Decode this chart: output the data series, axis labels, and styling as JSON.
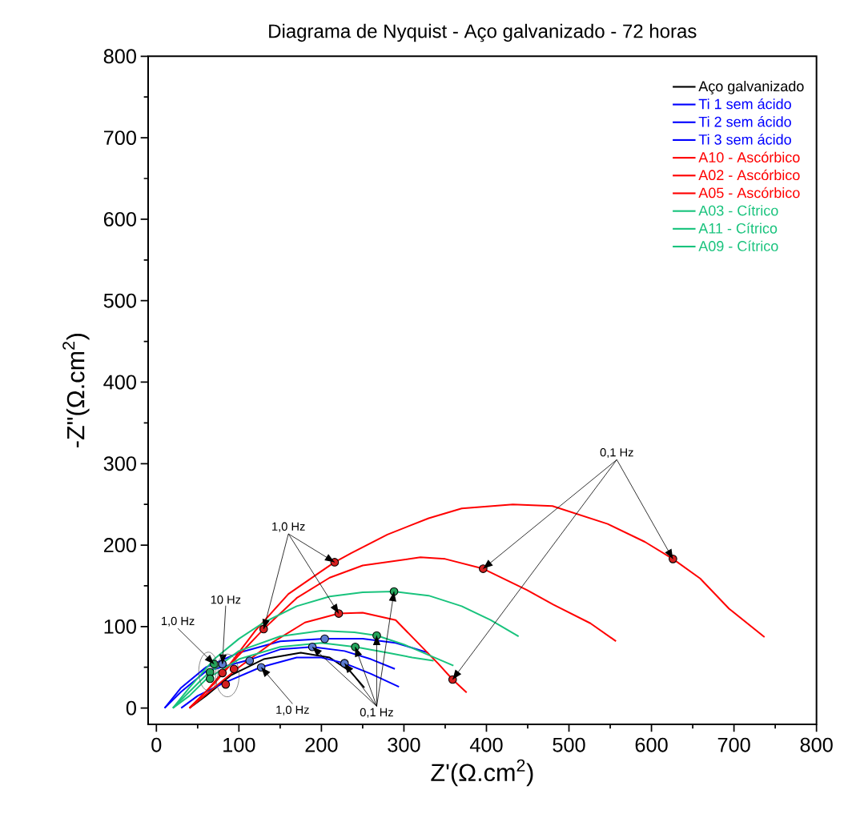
{
  "chart_data": {
    "type": "line",
    "title": "Diagrama de Nyquist - Aço galvanizado - 72 horas",
    "xlabel": "Z'(Ω.cm$^{2}$)",
    "ylabel": "-Z\"(Ω.cm$^{2}$)",
    "xlim": [
      -10,
      800
    ],
    "ylim": [
      -20,
      800
    ],
    "xticks": [
      0,
      100,
      200,
      300,
      400,
      500,
      600,
      700,
      800
    ],
    "yticks": [
      0,
      100,
      200,
      300,
      400,
      500,
      600,
      700,
      800
    ],
    "grid": false,
    "legend": "top right",
    "marker": "none",
    "line_style": "solid",
    "annotations": [
      {
        "text": "1,0 Hz",
        "x": 216,
        "y": 179
      },
      {
        "text": "10 Hz",
        "x": 80,
        "y": 54
      },
      {
        "text": "1,0 Hz",
        "x": 70,
        "y": 54
      },
      {
        "text": "1,0 Hz",
        "x": 127,
        "y": 50
      },
      {
        "text": "0,1 Hz",
        "x": 189,
        "y": 75
      },
      {
        "text": "0,1 Hz",
        "x": 626,
        "y": 183
      }
    ],
    "series": [
      {
        "name": "Aço galvanizado",
        "color": "#000000",
        "x": [
          40,
          60,
          90,
          130,
          175,
          210,
          235,
          252
        ],
        "values": [
          0,
          15,
          40,
          60,
          68,
          62,
          45,
          25
        ]
      },
      {
        "name": "Ti 1 sem ácido",
        "color": "#0000ff",
        "x": [
          10,
          30,
          60,
          100,
          150,
          204,
          250,
          290,
          329
        ],
        "values": [
          0,
          25,
          50,
          68,
          82,
          85,
          85,
          80,
          68
        ]
      },
      {
        "name": "Ti 2 sem ácido",
        "color": "#0000ff",
        "x": [
          10,
          30,
          60,
          112,
          150,
          189,
          228,
          260,
          289
        ],
        "values": [
          0,
          20,
          45,
          59,
          72,
          75,
          70,
          60,
          48
        ]
      },
      {
        "name": "Ti 3 sem ácido",
        "color": "#0000ff",
        "x": [
          30,
          50,
          80,
          126,
          170,
          200,
          228,
          260,
          294
        ],
        "values": [
          0,
          15,
          30,
          50,
          62,
          62,
          55,
          42,
          26
        ]
      },
      {
        "name": "A10 - Ascórbico",
        "color": "#ff0000",
        "x": [
          40,
          60,
          90,
          120,
          160,
          200,
          216,
          236,
          280,
          330,
          370,
          432,
          480,
          547,
          592,
          626,
          659,
          694,
          737
        ],
        "values": [
          0,
          20,
          55,
          95,
          140,
          168,
          179,
          190,
          213,
          233,
          245,
          250,
          248,
          226,
          204,
          183,
          159,
          122,
          87
        ]
      },
      {
        "name": "A02 - Ascórbico",
        "color": "#ff0000",
        "x": [
          40,
          70,
          100,
          130,
          170,
          210,
          250,
          320,
          350,
          396,
          449,
          481,
          526,
          557
        ],
        "values": [
          0,
          30,
          65,
          97,
          135,
          160,
          175,
          185,
          183,
          171,
          145,
          127,
          104,
          82
        ]
      },
      {
        "name": "A05 - Ascórbico",
        "color": "#ff0000",
        "x": [
          40,
          70,
          100,
          140,
          180,
          221,
          250,
          290,
          315,
          342,
          359,
          376
        ],
        "values": [
          0,
          25,
          50,
          80,
          105,
          116,
          117,
          108,
          82,
          54,
          35,
          19
        ]
      },
      {
        "name": "A03 - Cítrico",
        "color": "#19c37d",
        "x": [
          20,
          40,
          70,
          100,
          130,
          170,
          210,
          250,
          288,
          330,
          370,
          405,
          439
        ],
        "values": [
          0,
          25,
          60,
          85,
          105,
          125,
          137,
          142,
          143,
          138,
          125,
          108,
          88
        ]
      },
      {
        "name": "A11 - Cítrico",
        "color": "#19c37d",
        "x": [
          20,
          40,
          60,
          100,
          150,
          200,
          240,
          267,
          300,
          330,
          360
        ],
        "values": [
          0,
          20,
          40,
          70,
          88,
          95,
          93,
          89,
          78,
          65,
          52
        ]
      },
      {
        "name": "A09 - Cítrico",
        "color": "#19c37d",
        "x": [
          20,
          40,
          60,
          100,
          150,
          200,
          241,
          280,
          310,
          336
        ],
        "values": [
          0,
          15,
          35,
          60,
          75,
          80,
          75,
          68,
          62,
          58
        ]
      },
      {
        "type": "scatter",
        "marker": "circle",
        "color": "#d42020",
        "x": [
          80,
          94,
          84,
          130,
          221,
          216,
          396,
          626,
          359
        ],
        "values": [
          43,
          48,
          29,
          97,
          116,
          179,
          171,
          183,
          35
        ]
      },
      {
        "type": "scatter",
        "marker": "circle",
        "color": "#23a35a",
        "x": [
          70,
          65,
          65,
          288,
          267,
          241
        ],
        "values": [
          54,
          44,
          36,
          143,
          89,
          75
        ]
      },
      {
        "type": "scatter",
        "marker": "circle",
        "color": "#5b7bd0",
        "x": [
          80,
          113,
          127,
          189,
          204,
          228
        ],
        "values": [
          54,
          58,
          50,
          75,
          85,
          55
        ]
      }
    ]
  }
}
